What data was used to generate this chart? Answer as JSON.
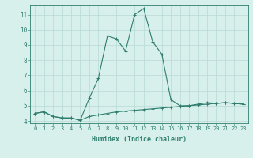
{
  "xlabel": "Humidex (Indice chaleur)",
  "x": [
    0,
    1,
    2,
    3,
    4,
    5,
    6,
    7,
    8,
    9,
    10,
    11,
    12,
    13,
    14,
    15,
    16,
    17,
    18,
    19,
    20,
    21,
    22,
    23
  ],
  "line1": [
    4.5,
    4.6,
    4.3,
    4.2,
    4.2,
    4.05,
    5.5,
    6.8,
    9.6,
    9.4,
    8.6,
    11.0,
    11.4,
    9.2,
    8.4,
    5.4,
    5.0,
    5.0,
    5.1,
    5.2,
    5.15,
    5.2,
    5.15,
    5.1
  ],
  "line2": [
    4.5,
    4.6,
    4.3,
    4.2,
    4.2,
    4.05,
    4.3,
    4.4,
    4.5,
    4.6,
    4.65,
    4.7,
    4.75,
    4.8,
    4.85,
    4.9,
    4.95,
    5.0,
    5.05,
    5.1,
    5.15,
    5.2,
    5.15,
    5.1
  ],
  "line_color": "#2e7d6e",
  "bg_color": "#d8f0ec",
  "grid_color": "#b8d8d4",
  "ylim": [
    3.85,
    11.65
  ],
  "yticks": [
    4,
    5,
    6,
    7,
    8,
    9,
    10,
    11
  ],
  "xlim": [
    -0.5,
    23.5
  ],
  "tick_fontsize": 5.0,
  "xlabel_fontsize": 6.0
}
